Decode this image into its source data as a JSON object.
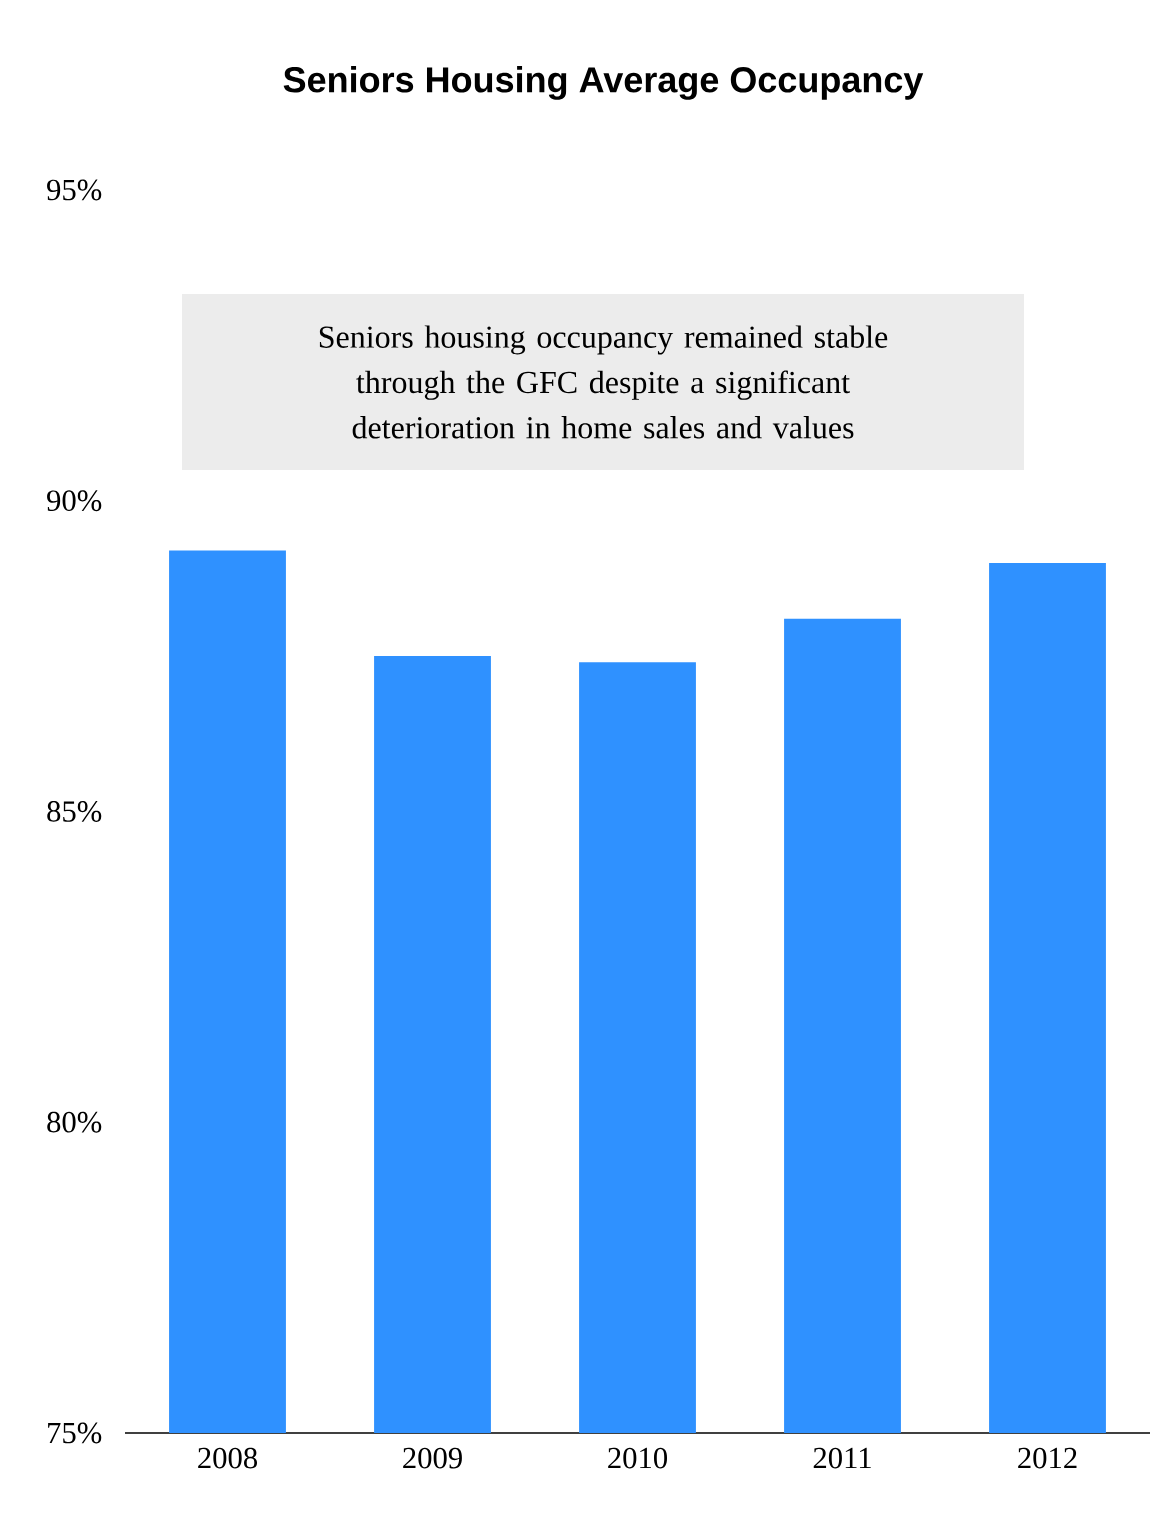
{
  "chart_data": {
    "type": "bar",
    "title": "Seniors Housing Average Occupancy",
    "categories": [
      "2008",
      "2009",
      "2010",
      "2011",
      "2012"
    ],
    "values": [
      89.2,
      87.5,
      87.4,
      88.1,
      89.0
    ],
    "color": "#2f91ff",
    "ylim": [
      75,
      95
    ],
    "yticks": [
      {
        "value": 75,
        "label": "75%"
      },
      {
        "value": 80,
        "label": "80%"
      },
      {
        "value": 85,
        "label": "85%"
      },
      {
        "value": 90,
        "label": "90%"
      },
      {
        "value": 95,
        "label": "95%"
      }
    ],
    "annotations": [
      "Seniors housing occupancy remained stable through the GFC despite a significant deterioration in home sales and values"
    ]
  }
}
